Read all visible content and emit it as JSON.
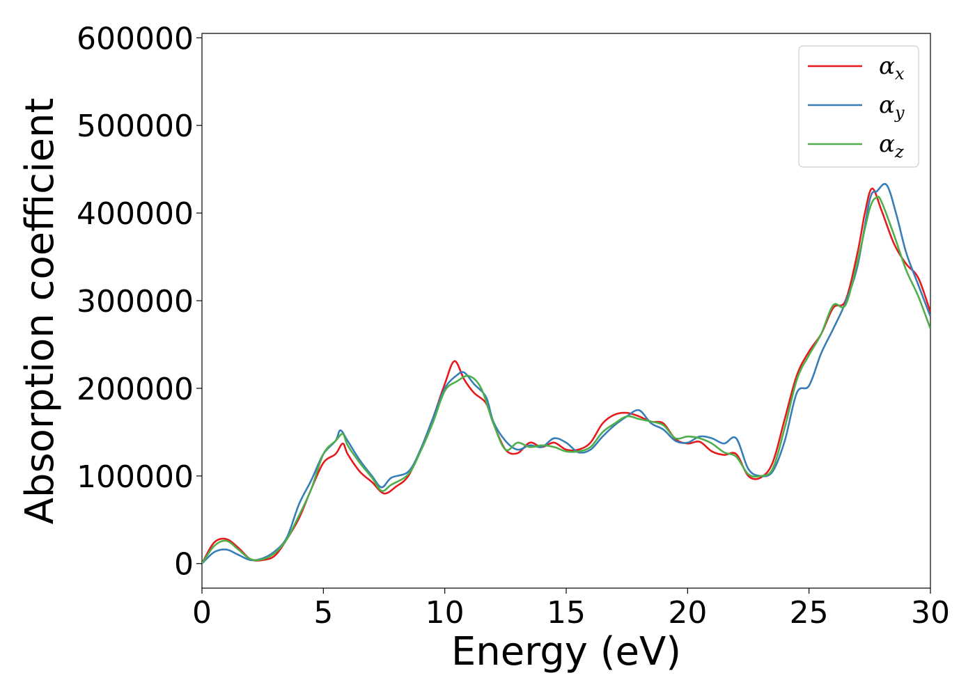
{
  "chart_data": {
    "type": "line",
    "xlabel": "Energy (eV)",
    "ylabel": "Absorption coefficient",
    "xlim": [
      0,
      30
    ],
    "ylim": [
      -28000,
      605000
    ],
    "x_ticks": [
      0,
      5,
      10,
      15,
      20,
      25,
      30
    ],
    "x_tick_labels": [
      "0",
      "5",
      "10",
      "15",
      "20",
      "25",
      "30"
    ],
    "y_ticks": [
      0,
      100000,
      200000,
      300000,
      400000,
      500000,
      600000
    ],
    "y_tick_labels": [
      "0",
      "100000",
      "200000",
      "300000",
      "400000",
      "500000",
      "600000"
    ],
    "grid": false,
    "legend_position": "top-right",
    "series": [
      {
        "name": "α",
        "subscript": "x",
        "color": "#e41a1c",
        "x": [
          0,
          0.5,
          1.0,
          1.5,
          2.0,
          2.5,
          3.0,
          3.5,
          4.0,
          4.5,
          5.0,
          5.5,
          5.8,
          6.0,
          6.5,
          7.0,
          7.5,
          8.0,
          8.5,
          9.0,
          9.5,
          10.0,
          10.4,
          10.8,
          11.2,
          11.7,
          12.0,
          12.5,
          13.0,
          13.5,
          14.0,
          14.5,
          15.0,
          15.5,
          16.0,
          16.5,
          17.0,
          17.5,
          18.0,
          18.5,
          19.0,
          19.5,
          20.0,
          20.5,
          21.0,
          21.5,
          22.0,
          22.5,
          23.0,
          23.5,
          24.0,
          24.5,
          25.0,
          25.5,
          26.0,
          26.5,
          27.0,
          27.3,
          27.6,
          28.0,
          28.5,
          29.0,
          29.5,
          30.0
        ],
        "y": [
          0,
          24000,
          28000,
          18000,
          5000,
          4000,
          9000,
          28000,
          52000,
          85000,
          115000,
          125000,
          137000,
          125000,
          105000,
          93000,
          80000,
          88000,
          100000,
          130000,
          165000,
          205000,
          231000,
          210000,
          195000,
          183000,
          160000,
          130000,
          126000,
          138000,
          133000,
          138000,
          130000,
          130000,
          138000,
          160000,
          170000,
          172000,
          168000,
          162000,
          160000,
          142000,
          137000,
          139000,
          128000,
          124000,
          125000,
          100000,
          98000,
          115000,
          165000,
          215000,
          242000,
          262000,
          292000,
          300000,
          355000,
          400000,
          428000,
          402000,
          365000,
          342000,
          326000,
          287000
        ]
      },
      {
        "name": "α",
        "subscript": "y",
        "color": "#377eb8",
        "x": [
          0,
          0.5,
          1.0,
          1.5,
          2.0,
          2.5,
          3.0,
          3.5,
          4.0,
          4.5,
          5.0,
          5.5,
          5.7,
          6.0,
          6.5,
          7.0,
          7.4,
          7.8,
          8.5,
          9.0,
          9.5,
          10.0,
          10.5,
          10.8,
          11.2,
          11.7,
          12.0,
          12.5,
          13.0,
          13.5,
          14.0,
          14.5,
          15.0,
          15.5,
          16.0,
          16.5,
          17.0,
          17.5,
          18.0,
          18.5,
          19.0,
          19.5,
          20.0,
          20.5,
          21.0,
          21.5,
          22.0,
          22.5,
          23.0,
          23.5,
          24.0,
          24.5,
          25.0,
          25.5,
          26.0,
          26.5,
          27.0,
          27.5,
          27.8,
          28.2,
          28.6,
          29.0,
          29.5,
          30.0
        ],
        "y": [
          0,
          13000,
          16000,
          10000,
          4000,
          6000,
          14000,
          30000,
          68000,
          95000,
          125000,
          140000,
          152000,
          140000,
          118000,
          100000,
          87000,
          98000,
          105000,
          130000,
          165000,
          200000,
          215000,
          218000,
          205000,
          190000,
          162000,
          140000,
          130000,
          135000,
          133000,
          143000,
          138000,
          127000,
          130000,
          145000,
          158000,
          168000,
          175000,
          160000,
          153000,
          140000,
          138000,
          145000,
          143000,
          137000,
          143000,
          108000,
          100000,
          105000,
          140000,
          195000,
          203000,
          240000,
          268000,
          298000,
          340000,
          415000,
          425000,
          432000,
          398000,
          355000,
          318000,
          282000
        ]
      },
      {
        "name": "α",
        "subscript": "z",
        "color": "#4daf4a",
        "x": [
          0,
          0.5,
          1.0,
          1.5,
          2.0,
          2.5,
          3.0,
          3.5,
          4.0,
          4.5,
          5.0,
          5.5,
          5.8,
          6.0,
          6.5,
          7.0,
          7.4,
          7.8,
          8.5,
          9.0,
          9.5,
          10.0,
          10.5,
          11.0,
          11.5,
          12.0,
          12.5,
          13.0,
          13.5,
          14.0,
          14.5,
          15.0,
          15.5,
          16.0,
          16.5,
          17.0,
          17.5,
          18.0,
          18.5,
          19.0,
          19.5,
          20.0,
          20.5,
          21.0,
          21.5,
          22.0,
          22.5,
          23.0,
          23.5,
          24.0,
          24.5,
          25.0,
          25.5,
          26.0,
          26.5,
          27.0,
          27.5,
          27.8,
          28.0,
          28.5,
          29.0,
          29.5,
          30.0
        ],
        "y": [
          0,
          20000,
          26000,
          16000,
          5000,
          5000,
          12000,
          28000,
          55000,
          85000,
          125000,
          140000,
          148000,
          135000,
          115000,
          98000,
          83000,
          90000,
          102000,
          128000,
          160000,
          197000,
          208000,
          214000,
          200000,
          160000,
          130000,
          138000,
          133000,
          135000,
          133000,
          128000,
          128000,
          133000,
          150000,
          160000,
          168000,
          165000,
          162000,
          158000,
          143000,
          145000,
          143000,
          137000,
          127000,
          122000,
          102000,
          100000,
          108000,
          155000,
          210000,
          238000,
          262000,
          295000,
          295000,
          345000,
          405000,
          418000,
          412000,
          375000,
          335000,
          305000,
          268000
        ]
      }
    ]
  }
}
